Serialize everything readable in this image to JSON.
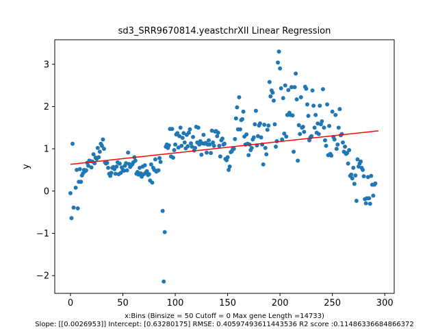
{
  "chart_data": {
    "type": "scatter",
    "title": "sd3_SRR9670814.yeastchrXII Linear Regression",
    "xlabel": "x:Bins  (Binsize = 50 Cutoff = 0 Max gene Length =14733)",
    "xlabel2": "Slope: [[0.0026953]] Intercept: [0.63280175] RMSE: 0.40597493611443536 R2 score :0.11486336684866372",
    "ylabel": "y",
    "xlim": [
      -15,
      309
    ],
    "ylim": [
      -2.42,
      3.58
    ],
    "xticks": [
      0,
      50,
      100,
      150,
      200,
      250,
      300
    ],
    "yticks": [
      -2,
      -1,
      0,
      1,
      2,
      3
    ],
    "grid": false,
    "colors": {
      "points": "#1f77b4",
      "line": "#ff0000"
    },
    "regression": {
      "slope": 0.0026953,
      "intercept": 0.63280175,
      "x_range": [
        0,
        294
      ]
    },
    "points": [
      [
        0,
        -0.05
      ],
      [
        1,
        -0.64
      ],
      [
        2,
        1.12
      ],
      [
        3,
        -0.39
      ],
      [
        5,
        0.08
      ],
      [
        6,
        0.5
      ],
      [
        7,
        -0.41
      ],
      [
        8,
        0.22
      ],
      [
        9,
        0.52
      ],
      [
        10,
        0.22
      ],
      [
        11,
        0.37
      ],
      [
        12,
        0.42
      ],
      [
        13,
        0.5
      ],
      [
        14,
        0.47
      ],
      [
        15,
        0.49
      ],
      [
        16,
        0.67
      ],
      [
        17,
        0.6
      ],
      [
        18,
        0.72
      ],
      [
        19,
        0.71
      ],
      [
        20,
        0.56
      ],
      [
        21,
        0.7
      ],
      [
        22,
        0.87
      ],
      [
        23,
        0.66
      ],
      [
        24,
        0.79
      ],
      [
        25,
        0.76
      ],
      [
        26,
        1.02
      ],
      [
        27,
        0.8
      ],
      [
        28,
        0.93
      ],
      [
        29,
        1.12
      ],
      [
        30,
        1.07
      ],
      [
        31,
        1.22
      ],
      [
        32,
        1.0
      ],
      [
        33,
        0.68
      ],
      [
        34,
        0.65
      ],
      [
        35,
        0.67
      ],
      [
        36,
        0.55
      ],
      [
        37,
        0.41
      ],
      [
        38,
        0.36
      ],
      [
        39,
        0.43
      ],
      [
        40,
        0.55
      ],
      [
        41,
        0.57
      ],
      [
        42,
        0.52
      ],
      [
        43,
        0.41
      ],
      [
        44,
        0.58
      ],
      [
        45,
        0.68
      ],
      [
        46,
        0.4
      ],
      [
        47,
        0.65
      ],
      [
        48,
        0.43
      ],
      [
        49,
        0.56
      ],
      [
        50,
        0.5
      ],
      [
        51,
        0.48
      ],
      [
        52,
        0.6
      ],
      [
        53,
        0.66
      ],
      [
        54,
        0.49
      ],
      [
        55,
        0.91
      ],
      [
        56,
        0.64
      ],
      [
        57,
        0.57
      ],
      [
        58,
        0.61
      ],
      [
        59,
        0.63
      ],
      [
        60,
        0.68
      ],
      [
        61,
        0.8
      ],
      [
        62,
        0.72
      ],
      [
        63,
        0.41
      ],
      [
        64,
        0.45
      ],
      [
        65,
        0.39
      ],
      [
        66,
        0.55
      ],
      [
        67,
        0.42
      ],
      [
        68,
        0.34
      ],
      [
        69,
        0.58
      ],
      [
        70,
        0.4
      ],
      [
        71,
        0.61
      ],
      [
        72,
        0.44
      ],
      [
        73,
        0.47
      ],
      [
        74,
        0.38
      ],
      [
        75,
        0.4
      ],
      [
        76,
        0.25
      ],
      [
        77,
        0.63
      ],
      [
        78,
        0.2
      ],
      [
        79,
        0.55
      ],
      [
        80,
        0.5
      ],
      [
        81,
        0.75
      ],
      [
        82,
        0.46
      ],
      [
        83,
        0.48
      ],
      [
        84,
        0.49
      ],
      [
        85,
        0.78
      ],
      [
        86,
        0.69
      ],
      [
        88,
        -0.47
      ],
      [
        89,
        -2.14
      ],
      [
        90,
        -0.97
      ],
      [
        91,
        1.05
      ],
      [
        92,
        1.1
      ],
      [
        93,
        1.02
      ],
      [
        94,
        1.08
      ],
      [
        95,
        1.47
      ],
      [
        96,
        0.82
      ],
      [
        97,
        1.47
      ],
      [
        98,
        0.79
      ],
      [
        99,
        0.97
      ],
      [
        100,
        1.1
      ],
      [
        101,
        1.34
      ],
      [
        102,
        1.37
      ],
      [
        103,
        1.03
      ],
      [
        104,
        1.3
      ],
      [
        105,
        1.5
      ],
      [
        106,
        1.07
      ],
      [
        107,
        1.26
      ],
      [
        108,
        1.37
      ],
      [
        109,
        1.15
      ],
      [
        110,
        1.01
      ],
      [
        111,
        1.33
      ],
      [
        112,
        1.06
      ],
      [
        113,
        1.38
      ],
      [
        114,
        1.46
      ],
      [
        115,
        1.13
      ],
      [
        116,
        1.05
      ],
      [
        117,
        1.28
      ],
      [
        118,
        0.96
      ],
      [
        119,
        1.02
      ],
      [
        120,
        1.52
      ],
      [
        121,
        1.15
      ],
      [
        122,
        1.5
      ],
      [
        123,
        1.1
      ],
      [
        124,
        1.18
      ],
      [
        125,
        0.86
      ],
      [
        126,
        1.13
      ],
      [
        127,
        1.33
      ],
      [
        128,
        1.12
      ],
      [
        129,
        1.14
      ],
      [
        130,
        0.91
      ],
      [
        131,
        1.1
      ],
      [
        132,
        1.2
      ],
      [
        133,
        1.1
      ],
      [
        134,
        0.9
      ],
      [
        135,
        1.43
      ],
      [
        136,
        1.15
      ],
      [
        137,
        1.07
      ],
      [
        138,
        1.41
      ],
      [
        139,
        1.42
      ],
      [
        140,
        1.3
      ],
      [
        141,
        1.38
      ],
      [
        142,
        1.07
      ],
      [
        143,
        0.82
      ],
      [
        144,
        1.2
      ],
      [
        145,
        1.24
      ],
      [
        146,
        1.1
      ],
      [
        147,
        1.12
      ],
      [
        148,
        0.76
      ],
      [
        149,
        0.73
      ],
      [
        150,
        0.8
      ],
      [
        151,
        0.5
      ],
      [
        152,
        0.58
      ],
      [
        153,
        0.92
      ],
      [
        154,
        0.94
      ],
      [
        155,
        1.0
      ],
      [
        156,
        1.0
      ],
      [
        157,
        1.23
      ],
      [
        158,
        1.72
      ],
      [
        159,
        1.98
      ],
      [
        160,
        1.46
      ],
      [
        161,
        2.22
      ],
      [
        162,
        1.46
      ],
      [
        163,
        1.68
      ],
      [
        164,
        1.7
      ],
      [
        165,
        1.88
      ],
      [
        166,
        1.29
      ],
      [
        167,
        1.1
      ],
      [
        168,
        1.34
      ],
      [
        169,
        1.12
      ],
      [
        170,
        0.85
      ],
      [
        171,
        1.1
      ],
      [
        172,
        0.97
      ],
      [
        173,
        1.02
      ],
      [
        174,
        1.22
      ],
      [
        175,
        1.27
      ],
      [
        176,
        1.58
      ],
      [
        177,
        1.9
      ],
      [
        178,
        1.08
      ],
      [
        179,
        1.3
      ],
      [
        180,
        1.55
      ],
      [
        181,
        1.6
      ],
      [
        182,
        1.27
      ],
      [
        183,
        1.1
      ],
      [
        184,
        0.63
      ],
      [
        185,
        1.57
      ],
      [
        186,
        1.02
      ],
      [
        187,
        0.87
      ],
      [
        188,
        1.45
      ],
      [
        189,
        1.55
      ],
      [
        190,
        2.58
      ],
      [
        191,
        2.24
      ],
      [
        192,
        2.38
      ],
      [
        193,
        2.33
      ],
      [
        194,
        2.14
      ],
      [
        195,
        1.58
      ],
      [
        196,
        1.05
      ],
      [
        197,
        1.18
      ],
      [
        198,
        3.04
      ],
      [
        199,
        3.3
      ],
      [
        200,
        2.9
      ],
      [
        201,
        2.43
      ],
      [
        202,
        1.22
      ],
      [
        203,
        2.2
      ],
      [
        204,
        1.36
      ],
      [
        205,
        2.5
      ],
      [
        206,
        1.29
      ],
      [
        207,
        1.8
      ],
      [
        208,
        2.39
      ],
      [
        209,
        1.85
      ],
      [
        210,
        1.8
      ],
      [
        211,
        2.46
      ],
      [
        212,
        1.79
      ],
      [
        213,
        0.93
      ],
      [
        214,
        2.46
      ],
      [
        215,
        2.78
      ],
      [
        216,
        2.17
      ],
      [
        217,
        0.72
      ],
      [
        218,
        1.56
      ],
      [
        219,
        1.35
      ],
      [
        220,
        2.22
      ],
      [
        221,
        1.5
      ],
      [
        222,
        1.52
      ],
      [
        223,
        1.4
      ],
      [
        224,
        2.47
      ],
      [
        225,
        2.42
      ],
      [
        226,
        2.05
      ],
      [
        227,
        1.78
      ],
      [
        228,
        1.2
      ],
      [
        229,
        1.27
      ],
      [
        230,
        1.3
      ],
      [
        231,
        2.38
      ],
      [
        232,
        2.02
      ],
      [
        233,
        1.5
      ],
      [
        234,
        1.8
      ],
      [
        235,
        1.38
      ],
      [
        236,
        1.6
      ],
      [
        237,
        1.35
      ],
      [
        238,
        2.02
      ],
      [
        239,
        1.58
      ],
      [
        240,
        1.65
      ],
      [
        241,
        2.41
      ],
      [
        242,
        1.5
      ],
      [
        243,
        1.2
      ],
      [
        244,
        1.07
      ],
      [
        245,
        2.05
      ],
      [
        246,
        0.85
      ],
      [
        247,
        1.54
      ],
      [
        248,
        0.88
      ],
      [
        249,
        0.84
      ],
      [
        250,
        1.88
      ],
      [
        251,
        1.28
      ],
      [
        252,
        1.22
      ],
      [
        253,
        1.8
      ],
      [
        254,
        1.0
      ],
      [
        255,
        1.1
      ],
      [
        256,
        1.5
      ],
      [
        257,
        1.94
      ],
      [
        258,
        1.32
      ],
      [
        259,
        1.35
      ],
      [
        260,
        1.15
      ],
      [
        261,
        0.93
      ],
      [
        262,
        1.05
      ],
      [
        263,
        0.88
      ],
      [
        264,
        0.9
      ],
      [
        265,
        0.65
      ],
      [
        266,
        0.97
      ],
      [
        267,
        0.36
      ],
      [
        268,
        0.39
      ],
      [
        269,
        0.3
      ],
      [
        270,
        0.55
      ],
      [
        271,
        0.17
      ],
      [
        272,
        0.37
      ],
      [
        273,
        -0.23
      ],
      [
        274,
        0.75
      ],
      [
        275,
        0.58
      ],
      [
        276,
        0.65
      ],
      [
        277,
        0.7
      ],
      [
        278,
        0.55
      ],
      [
        279,
        0.5
      ],
      [
        280,
        0.35
      ],
      [
        281,
        -0.19
      ],
      [
        282,
        -0.29
      ],
      [
        283,
        -0.17
      ],
      [
        284,
        0.33
      ],
      [
        285,
        -0.17
      ],
      [
        286,
        -0.3
      ],
      [
        287,
        0.36
      ],
      [
        288,
        0.15
      ],
      [
        289,
        -0.11
      ],
      [
        290,
        0.15
      ],
      [
        291,
        0.18
      ]
    ]
  }
}
